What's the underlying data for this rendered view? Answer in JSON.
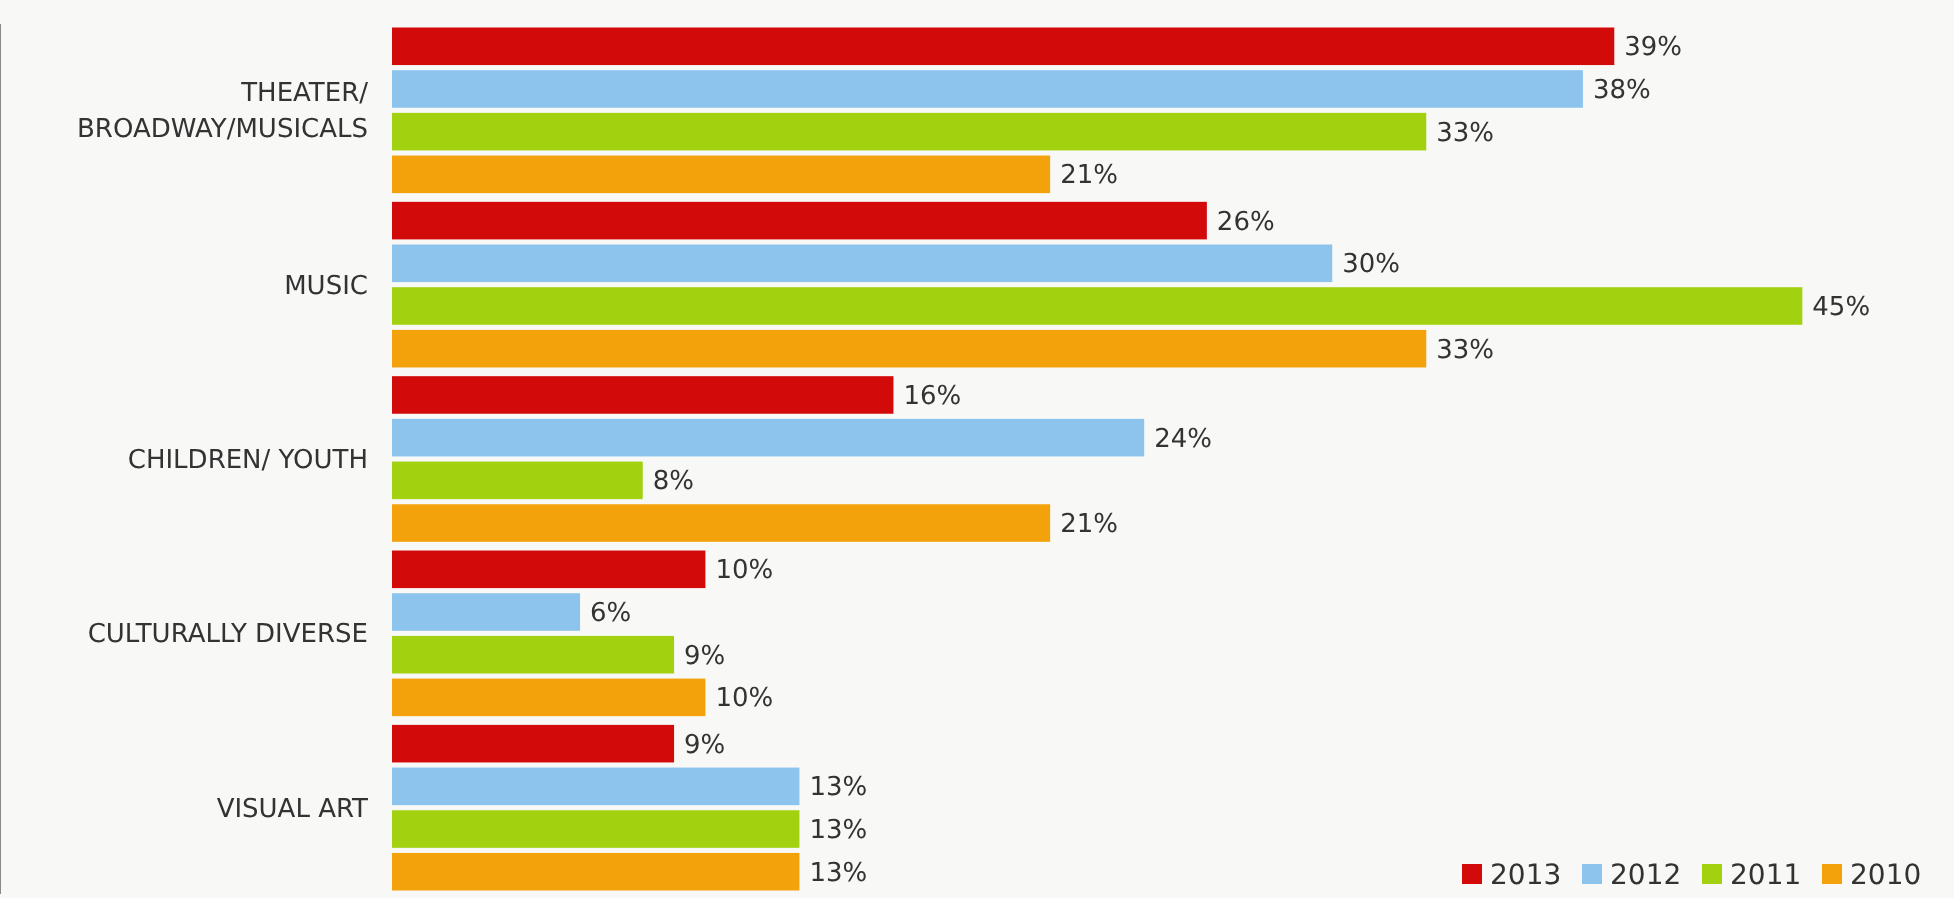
{
  "chart_data": {
    "type": "bar",
    "orientation": "horizontal",
    "categories": [
      "THEATER/ BROADWAY/MUSICALS",
      "MUSIC",
      "CHILDREN/ YOUTH",
      "CULTURALLY DIVERSE",
      "VISUAL ART"
    ],
    "tick_labels": "y",
    "legend": "bottom right",
    "series": [
      {
        "name": "2013",
        "color": "#d20a0a",
        "values": [
          39,
          26,
          16,
          10,
          9
        ],
        "value_labels": [
          "39%",
          "26%",
          "16%",
          "10%",
          "9%"
        ]
      },
      {
        "name": "2012",
        "color": "#8cc4ee",
        "values": [
          38,
          30,
          24,
          6,
          13
        ],
        "value_labels": [
          "38%",
          "30%",
          "24%",
          "6%",
          "13%"
        ]
      },
      {
        "name": "2011",
        "color": "#a2d110",
        "values": [
          33,
          45,
          8,
          9,
          13
        ],
        "value_labels": [
          "33%",
          "45%",
          "8%",
          "9%",
          "13%"
        ]
      },
      {
        "name": "2010",
        "color": "#f4a20c",
        "values": [
          21,
          33,
          21,
          10,
          13
        ],
        "value_labels": [
          "21%",
          "33%",
          "21%",
          "10%",
          "13%"
        ]
      }
    ]
  }
}
